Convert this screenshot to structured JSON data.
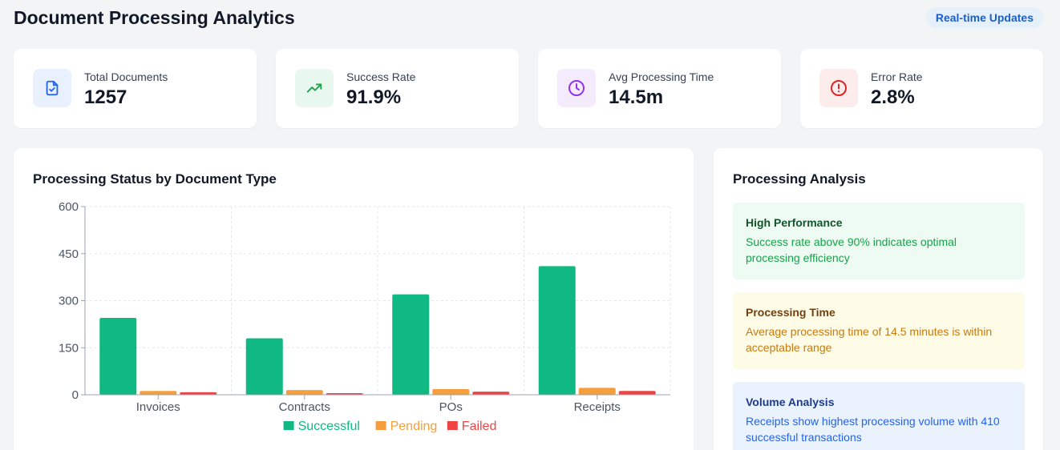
{
  "header": {
    "title": "Document Processing Analytics",
    "badge": "Real-time Updates"
  },
  "stats": [
    {
      "label": "Total Documents",
      "value": "1257",
      "icon": "document-check-icon",
      "icon_bg": "#e8f1fd",
      "icon_color": "#2563eb"
    },
    {
      "label": "Success Rate",
      "value": "91.9%",
      "icon": "trending-up-icon",
      "icon_bg": "#e8f8ef",
      "icon_color": "#16a34a"
    },
    {
      "label": "Avg Processing Time",
      "value": "14.5m",
      "icon": "clock-icon",
      "icon_bg": "#f4ecfd",
      "icon_color": "#9333ea"
    },
    {
      "label": "Error Rate",
      "value": "2.8%",
      "icon": "alert-circle-icon",
      "icon_bg": "#fdecec",
      "icon_color": "#dc2626"
    }
  ],
  "chart_panel": {
    "title": "Processing Status by Document Type"
  },
  "chart_data": {
    "type": "bar",
    "title": "Processing Status by Document Type",
    "categories": [
      "Invoices",
      "Contracts",
      "POs",
      "Receipts"
    ],
    "series": [
      {
        "name": "Successful",
        "color": "#10b981",
        "values": [
          245,
          180,
          320,
          410
        ]
      },
      {
        "name": "Pending",
        "color": "#f59e3b",
        "values": [
          12,
          15,
          18,
          22
        ]
      },
      {
        "name": "Failed",
        "color": "#ef4444",
        "values": [
          8,
          5,
          10,
          12
        ]
      }
    ],
    "ylim": [
      0,
      600
    ],
    "yticks": [
      "0",
      "150",
      "300",
      "450",
      "600"
    ],
    "grid": true,
    "legend": "bottom"
  },
  "analysis": {
    "title": "Processing Analysis",
    "items": [
      {
        "title": "High Performance",
        "text": "Success rate above 90% indicates optimal processing efficiency",
        "bg": "#edfbf2",
        "title_color": "#14532d",
        "text_color": "#16a34a"
      },
      {
        "title": "Processing Time",
        "text": "Average processing time of 14.5 minutes is within acceptable range",
        "bg": "#fefbe6",
        "title_color": "#713f12",
        "text_color": "#ca7a0a"
      },
      {
        "title": "Volume Analysis",
        "text": "Receipts show highest processing volume with 410 successful transactions",
        "bg": "#eaf3fd",
        "title_color": "#1e3a8a",
        "text_color": "#2563eb"
      }
    ]
  }
}
